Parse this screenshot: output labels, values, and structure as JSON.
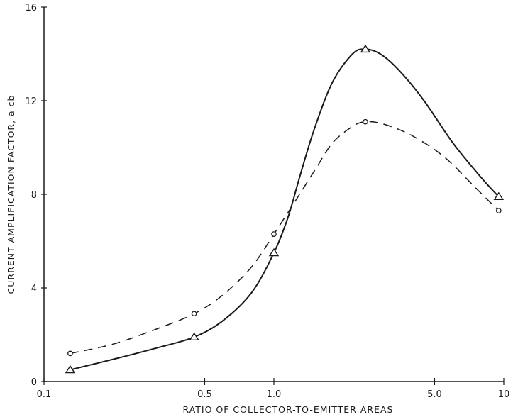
{
  "chart_data": {
    "type": "line",
    "title": "",
    "xlabel": "RATIO OF COLLECTOR-TO-EMITTER AREAS",
    "ylabel": "CURRENT AMPLIFICATION FACTOR, a cb",
    "xscale": "log",
    "xlim": [
      0.1,
      10
    ],
    "ylim": [
      0,
      16
    ],
    "xticks": [
      0.1,
      0.5,
      1.0,
      5.0,
      10
    ],
    "xtick_labels": [
      "0.1",
      "0.5",
      "1.0",
      "5.0",
      "10"
    ],
    "yticks": [
      0,
      4,
      8,
      12,
      16
    ],
    "ytick_labels": [
      "0",
      "4",
      "8",
      "12",
      "16"
    ],
    "grid": false,
    "legend": "none",
    "series": [
      {
        "style": "solid",
        "marker": "triangle",
        "x": [
          0.13,
          0.45,
          1.0,
          2.5,
          9.5
        ],
        "y": [
          0.5,
          1.9,
          5.5,
          14.2,
          7.9
        ],
        "curve_x": [
          0.13,
          0.2,
          0.3,
          0.45,
          0.6,
          0.8,
          1.0,
          1.15,
          1.3,
          1.5,
          1.8,
          2.2,
          2.5,
          2.9,
          3.5,
          4.5,
          6.0,
          8.0,
          9.5
        ],
        "curve_y": [
          0.5,
          0.95,
          1.4,
          1.9,
          2.6,
          3.8,
          5.5,
          7.0,
          8.8,
          10.8,
          12.8,
          14.0,
          14.2,
          14.0,
          13.3,
          12.0,
          10.2,
          8.7,
          7.9
        ]
      },
      {
        "style": "dashed",
        "marker": "circle",
        "x": [
          0.13,
          0.45,
          1.0,
          2.5,
          9.5
        ],
        "y": [
          1.2,
          2.9,
          6.3,
          11.1,
          7.3
        ],
        "curve_x": [
          0.13,
          0.2,
          0.3,
          0.45,
          0.6,
          0.8,
          1.0,
          1.2,
          1.5,
          1.8,
          2.2,
          2.5,
          3.0,
          4.0,
          5.5,
          7.5,
          9.5
        ],
        "curve_y": [
          1.2,
          1.6,
          2.2,
          2.9,
          3.7,
          4.9,
          6.3,
          7.5,
          9.0,
          10.2,
          10.9,
          11.1,
          11.0,
          10.5,
          9.6,
          8.3,
          7.3
        ]
      }
    ]
  }
}
